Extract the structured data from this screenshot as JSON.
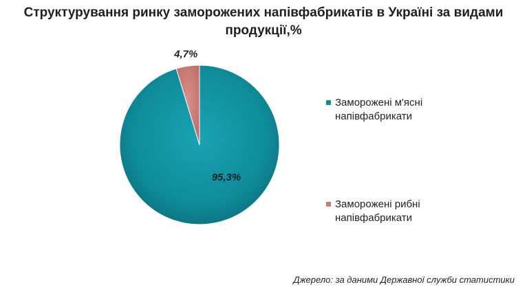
{
  "chart_data": {
    "type": "pie",
    "title_lines": [
      "Структурування ринку заморожених напівфабрикатів в Україні за видами",
      "продукції,%"
    ],
    "slices": [
      {
        "name": "Заморожені м'ясні напівфабрикати",
        "value": 95.3,
        "label": "95,3%",
        "color": "#0f8c9a"
      },
      {
        "name": "Заморожені рибні напівфабрикати",
        "value": 4.7,
        "label": "4,7%",
        "color": "#c97b74"
      }
    ],
    "legend_position": "right",
    "source": "Джерело: за даними Державної служби статистики"
  }
}
